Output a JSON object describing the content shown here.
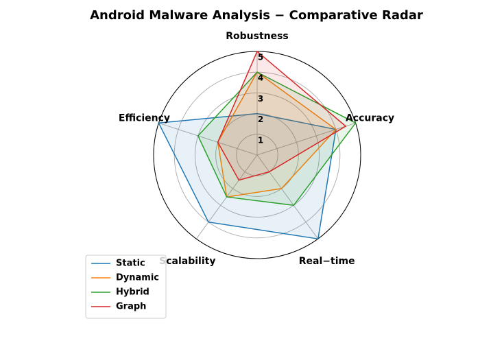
{
  "chart_data": {
    "type": "radar",
    "title": "Android Malware Analysis − Comparative Radar",
    "categories": [
      "Accuracy",
      "Robustness",
      "Efficiency",
      "Scalability",
      "Real−time"
    ],
    "ylim": [
      0,
      5
    ],
    "yticks": [
      1,
      2,
      3,
      4,
      5
    ],
    "grid": true,
    "legend": "lower left",
    "series": [
      {
        "name": "Static",
        "color": "#1f77b4",
        "values": [
          4,
          2,
          5,
          4,
          5
        ]
      },
      {
        "name": "Dynamic",
        "color": "#ff7f0e",
        "values": [
          4,
          4,
          2,
          2.5,
          2
        ]
      },
      {
        "name": "Hybrid",
        "color": "#2ca02c",
        "values": [
          5,
          4,
          3,
          2.5,
          3
        ]
      },
      {
        "name": "Graph",
        "color": "#d62728",
        "values": [
          4.5,
          5,
          2,
          1.5,
          1
        ]
      }
    ]
  }
}
